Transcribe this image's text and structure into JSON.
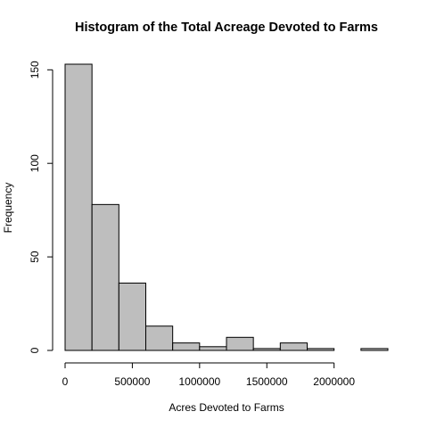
{
  "chart_data": {
    "type": "bar",
    "title": "Histogram of the Total Acreage Devoted to Farms",
    "xlabel": "Acres Devoted to Farms",
    "ylabel": "Frequency",
    "bin_width": 200000,
    "bins": [
      {
        "start": 0,
        "end": 200000,
        "count": 153
      },
      {
        "start": 200000,
        "end": 400000,
        "count": 78
      },
      {
        "start": 400000,
        "end": 600000,
        "count": 36
      },
      {
        "start": 600000,
        "end": 800000,
        "count": 13
      },
      {
        "start": 800000,
        "end": 1000000,
        "count": 4
      },
      {
        "start": 1000000,
        "end": 1200000,
        "count": 2
      },
      {
        "start": 1200000,
        "end": 1400000,
        "count": 7
      },
      {
        "start": 1400000,
        "end": 1600000,
        "count": 1
      },
      {
        "start": 1600000,
        "end": 1800000,
        "count": 4
      },
      {
        "start": 1800000,
        "end": 2000000,
        "count": 1
      },
      {
        "start": 2000000,
        "end": 2200000,
        "count": 0
      },
      {
        "start": 2200000,
        "end": 2400000,
        "count": 1
      }
    ],
    "x_ticks": [
      0,
      500000,
      1000000,
      1500000,
      2000000
    ],
    "x_tick_labels": [
      "0",
      "500000",
      "1000000",
      "1500000",
      "2000000"
    ],
    "y_ticks": [
      0,
      50,
      100,
      150
    ],
    "y_tick_labels": [
      "0",
      "50",
      "100",
      "150"
    ],
    "xlim": [
      0,
      2400000
    ],
    "ylim": [
      0,
      153
    ],
    "bar_color": "#bebebe",
    "grid": false,
    "legend": "none"
  }
}
